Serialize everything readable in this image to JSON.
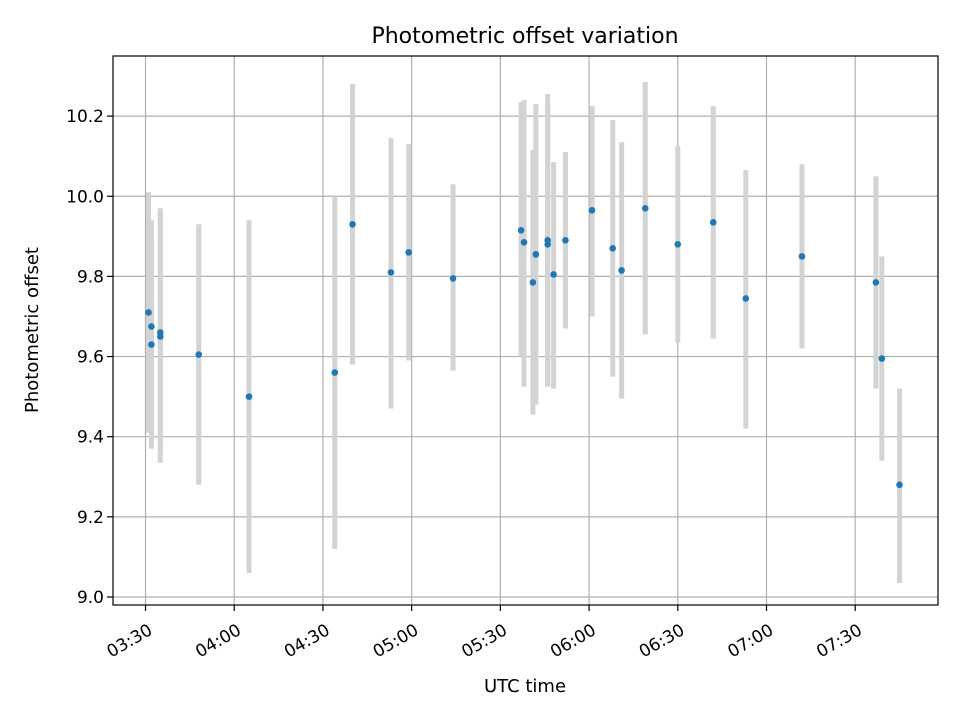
{
  "chart_data": {
    "type": "scatter",
    "title": "Photometric offset variation",
    "xlabel": "UTC time",
    "ylabel": "Photometric offset",
    "xlim": [
      "03:19",
      "07:58"
    ],
    "ylim": [
      8.98,
      10.35
    ],
    "x_ticks": [
      "03:30",
      "04:00",
      "04:30",
      "05:00",
      "05:30",
      "06:00",
      "06:30",
      "07:00",
      "07:30"
    ],
    "y_ticks": [
      9.0,
      9.2,
      9.4,
      9.6,
      9.8,
      10.0,
      10.2
    ],
    "grid": true,
    "point_color": "#1f77b4",
    "errorbar_color": "#d3d3d3",
    "points": [
      {
        "x": "03:31",
        "y": 9.71,
        "low": 9.41,
        "high": 10.01
      },
      {
        "x": "03:32",
        "y": 9.675,
        "low": 9.41,
        "high": 9.94
      },
      {
        "x": "03:32",
        "y": 9.63,
        "low": 9.37,
        "high": 9.89
      },
      {
        "x": "03:35",
        "y": 9.66,
        "low": 9.36,
        "high": 9.96
      },
      {
        "x": "03:35",
        "y": 9.65,
        "low": 9.335,
        "high": 9.97
      },
      {
        "x": "03:48",
        "y": 9.605,
        "low": 9.28,
        "high": 9.93
      },
      {
        "x": "04:05",
        "y": 9.5,
        "low": 9.06,
        "high": 9.94
      },
      {
        "x": "04:34",
        "y": 9.56,
        "low": 9.12,
        "high": 10.0
      },
      {
        "x": "04:40",
        "y": 9.93,
        "low": 9.58,
        "high": 10.28
      },
      {
        "x": "04:53",
        "y": 9.81,
        "low": 9.47,
        "high": 10.145
      },
      {
        "x": "04:59",
        "y": 9.86,
        "low": 9.59,
        "high": 10.13
      },
      {
        "x": "05:14",
        "y": 9.795,
        "low": 9.565,
        "high": 10.03
      },
      {
        "x": "05:37",
        "y": 9.915,
        "low": 9.6,
        "high": 10.235
      },
      {
        "x": "05:38",
        "y": 9.885,
        "low": 9.525,
        "high": 10.24
      },
      {
        "x": "05:41",
        "y": 9.785,
        "low": 9.455,
        "high": 10.115
      },
      {
        "x": "05:42",
        "y": 9.855,
        "low": 9.48,
        "high": 10.23
      },
      {
        "x": "05:46",
        "y": 9.89,
        "low": 9.525,
        "high": 10.255
      },
      {
        "x": "05:46",
        "y": 9.88,
        "low": 9.525,
        "high": 10.235
      },
      {
        "x": "05:48",
        "y": 9.805,
        "low": 9.52,
        "high": 10.085
      },
      {
        "x": "05:52",
        "y": 9.89,
        "low": 9.67,
        "high": 10.11
      },
      {
        "x": "06:01",
        "y": 9.965,
        "low": 9.7,
        "high": 10.225
      },
      {
        "x": "06:08",
        "y": 9.87,
        "low": 9.55,
        "high": 10.19
      },
      {
        "x": "06:11",
        "y": 9.815,
        "low": 9.495,
        "high": 10.135
      },
      {
        "x": "06:19",
        "y": 9.97,
        "low": 9.655,
        "high": 10.285
      },
      {
        "x": "06:30",
        "y": 9.88,
        "low": 9.635,
        "high": 10.125
      },
      {
        "x": "06:42",
        "y": 9.935,
        "low": 9.645,
        "high": 10.225
      },
      {
        "x": "06:53",
        "y": 9.745,
        "low": 9.42,
        "high": 10.065
      },
      {
        "x": "07:12",
        "y": 9.85,
        "low": 9.62,
        "high": 10.08
      },
      {
        "x": "07:37",
        "y": 9.785,
        "low": 9.52,
        "high": 10.05
      },
      {
        "x": "07:39",
        "y": 9.595,
        "low": 9.34,
        "high": 9.85
      },
      {
        "x": "07:45",
        "y": 9.28,
        "low": 9.035,
        "high": 9.52
      }
    ]
  }
}
